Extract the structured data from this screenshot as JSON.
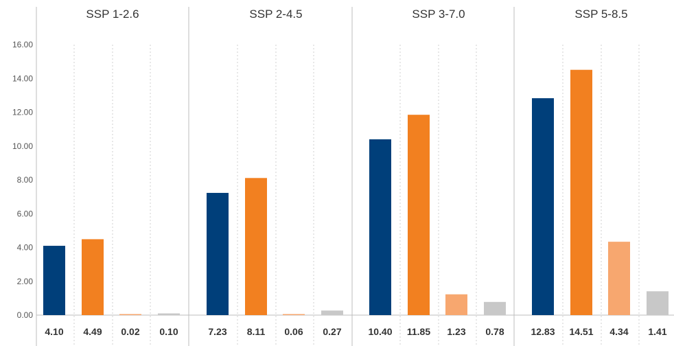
{
  "chart_data": {
    "type": "bar",
    "ylim": [
      0,
      16
    ],
    "yticks": [
      "0.00",
      "2.00",
      "4.00",
      "6.00",
      "8.00",
      "10.00",
      "12.00",
      "14.00",
      "16.00"
    ],
    "grid": "vertical dotted separators between bars",
    "colors": [
      "#003f7a",
      "#f28020",
      "#f7a76f",
      "#c8c8c8"
    ],
    "panels": [
      {
        "title": "SSP 1-2.6",
        "values": [
          4.1,
          4.49,
          0.02,
          0.1
        ],
        "labels": [
          "4.10",
          "4.49",
          "0.02",
          "0.10"
        ]
      },
      {
        "title": "SSP 2-4.5",
        "values": [
          7.23,
          8.11,
          0.06,
          0.27
        ],
        "labels": [
          "7.23",
          "8.11",
          "0.06",
          "0.27"
        ]
      },
      {
        "title": "SSP 3-7.0",
        "values": [
          10.4,
          11.85,
          1.23,
          0.78
        ],
        "labels": [
          "10.40",
          "11.85",
          "1.23",
          "0.78"
        ]
      },
      {
        "title": "SSP 5-8.5",
        "values": [
          12.83,
          14.51,
          4.34,
          1.41
        ],
        "labels": [
          "12.83",
          "14.51",
          "4.34",
          "1.41"
        ]
      }
    ]
  }
}
